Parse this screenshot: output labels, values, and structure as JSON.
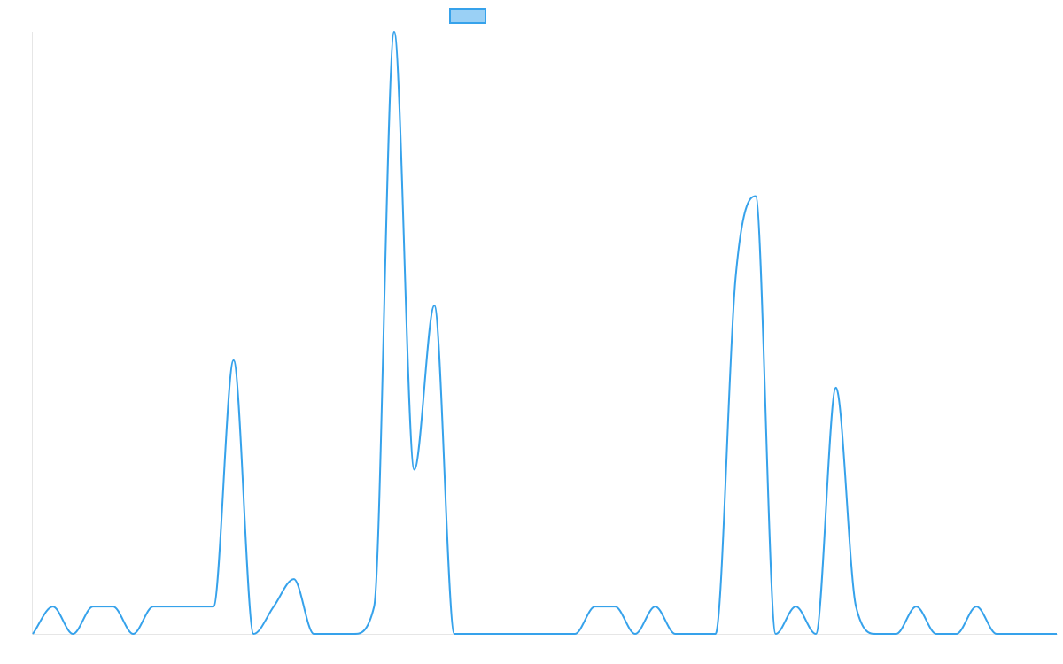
{
  "chart_data": {
    "type": "line",
    "title": "",
    "xlabel": "",
    "ylabel": "",
    "legend": {
      "placement": "top-center",
      "label": ""
    },
    "grid": false,
    "ylim": [
      0,
      22
    ],
    "x": [
      0,
      1,
      2,
      3,
      4,
      5,
      6,
      7,
      8,
      9,
      10,
      11,
      12,
      13,
      14,
      15,
      16,
      17,
      18,
      19,
      20,
      21,
      22,
      23,
      24,
      25,
      26,
      27,
      28,
      29,
      30,
      31,
      32,
      33,
      34,
      35,
      36,
      37,
      38,
      39,
      40,
      41,
      42,
      43,
      44,
      45,
      46,
      47,
      48,
      49,
      50,
      51
    ],
    "series": [
      {
        "color": "#36a2eb",
        "fill": "#9ad0f5",
        "values": [
          0,
          1,
          0,
          1,
          1,
          0,
          1,
          1,
          1,
          1,
          10,
          0,
          1,
          2,
          0,
          0,
          0,
          1,
          22,
          6,
          12,
          0,
          0,
          0,
          0,
          0,
          0,
          0,
          1,
          1,
          0,
          1,
          0,
          0,
          0,
          13,
          16,
          0,
          1,
          0,
          9,
          1,
          0,
          0,
          1,
          0,
          0,
          1,
          0,
          0,
          0,
          0
        ]
      }
    ],
    "colors": {
      "line": "#36a2eb",
      "legend_fill": "#9ad0f5",
      "axis": "#e6e6e6"
    }
  }
}
